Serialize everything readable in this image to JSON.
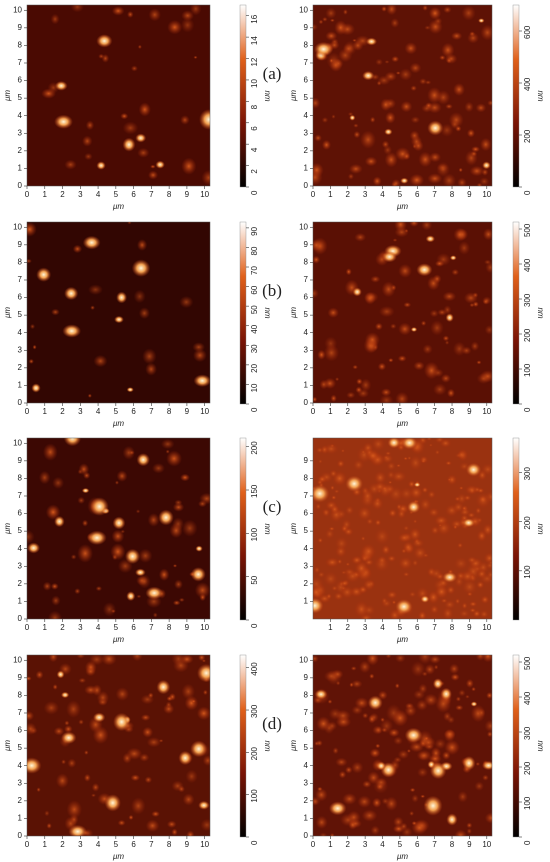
{
  "panels": [
    {
      "label": "(a)",
      "images": [
        {
          "xlabel": "μm",
          "ylabel": "μm",
          "xticks": [
            0,
            1,
            2,
            3,
            4,
            5,
            6,
            7,
            8,
            9,
            10
          ],
          "yticks": [
            0,
            1,
            2,
            3,
            4,
            5,
            6,
            7,
            8,
            9,
            10
          ],
          "xlim": [
            0,
            10.3
          ],
          "ylim": [
            0,
            10.3
          ],
          "colorbar": {
            "label": "nm",
            "ticks": [
              0,
              2,
              4,
              6,
              8,
              10,
              12,
              14,
              16
            ],
            "zlim": [
              0,
              17
            ]
          }
        },
        {
          "xlabel": "μm",
          "ylabel": "μm",
          "xticks": [
            0,
            1,
            2,
            3,
            4,
            5,
            6,
            7,
            8,
            9,
            10
          ],
          "yticks": [
            0,
            1,
            2,
            3,
            4,
            5,
            6,
            7,
            8,
            9,
            10
          ],
          "xlim": [
            0,
            10.3
          ],
          "ylim": [
            0,
            10.3
          ],
          "colorbar": {
            "label": "nm",
            "ticks": [
              0,
              200,
              400,
              600
            ],
            "zlim": [
              0,
              700
            ]
          }
        }
      ]
    },
    {
      "label": "(b)",
      "images": [
        {
          "xlabel": "μm",
          "ylabel": "μm",
          "xticks": [
            0,
            1,
            2,
            3,
            4,
            5,
            6,
            7,
            8,
            9,
            10
          ],
          "yticks": [
            0,
            1,
            2,
            3,
            4,
            5,
            6,
            7,
            8,
            9,
            10
          ],
          "xlim": [
            0,
            10.3
          ],
          "ylim": [
            0,
            10.3
          ],
          "colorbar": {
            "label": "nm",
            "ticks": [
              0,
              10,
              20,
              30,
              40,
              50,
              60,
              70,
              80,
              90
            ],
            "zlim": [
              0,
              93
            ]
          }
        },
        {
          "xlabel": "μm",
          "ylabel": "μm",
          "xticks": [
            0,
            1,
            2,
            3,
            4,
            5,
            6,
            7,
            8,
            9,
            10
          ],
          "yticks": [
            0,
            1,
            2,
            3,
            4,
            5,
            6,
            7,
            8,
            9,
            10
          ],
          "xlim": [
            0,
            10.3
          ],
          "ylim": [
            0,
            10.3
          ],
          "colorbar": {
            "label": "nm",
            "ticks": [
              0,
              100,
              200,
              300,
              400,
              500
            ],
            "zlim": [
              0,
              520
            ]
          }
        }
      ]
    },
    {
      "label": "(c)",
      "images": [
        {
          "xlabel": "μm",
          "ylabel": "μm",
          "xticks": [
            0,
            1,
            2,
            3,
            4,
            5,
            6,
            7,
            8,
            9,
            10
          ],
          "yticks": [
            0,
            1,
            2,
            3,
            4,
            5,
            6,
            7,
            8,
            9,
            10
          ],
          "xlim": [
            0,
            10.3
          ],
          "ylim": [
            0,
            10.3
          ],
          "colorbar": {
            "label": "nm",
            "ticks": [
              0,
              50,
              100,
              150,
              200
            ],
            "zlim": [
              0,
              210
            ]
          }
        },
        {
          "xlabel": "μm",
          "ylabel": "μm",
          "xticks": [
            1,
            2,
            3,
            4,
            5,
            6,
            7,
            8,
            9,
            10
          ],
          "yticks": [
            1,
            2,
            3,
            4,
            5,
            6,
            7,
            8,
            9
          ],
          "xlim": [
            0,
            10.3
          ],
          "ylim": [
            0,
            10.3
          ],
          "colorbar": {
            "label": "nm",
            "ticks": [
              100,
              200,
              300
            ],
            "zlim": [
              0,
              370
            ]
          }
        }
      ]
    },
    {
      "label": "(d)",
      "images": [
        {
          "xlabel": "μm",
          "ylabel": "μm",
          "xticks": [
            0,
            1,
            2,
            3,
            4,
            5,
            6,
            7,
            8,
            9,
            10
          ],
          "yticks": [
            0,
            1,
            2,
            3,
            4,
            5,
            6,
            7,
            8,
            9,
            10
          ],
          "xlim": [
            0,
            10.3
          ],
          "ylim": [
            0,
            10.3
          ],
          "colorbar": {
            "label": "nm",
            "ticks": [
              0,
              100,
              200,
              300,
              400
            ],
            "zlim": [
              0,
              430
            ]
          }
        },
        {
          "xlabel": "μm",
          "ylabel": "μm",
          "xticks": [
            0,
            1,
            2,
            3,
            4,
            5,
            6,
            7,
            8,
            9,
            10
          ],
          "yticks": [
            0,
            1,
            2,
            3,
            4,
            5,
            6,
            7,
            8,
            9,
            10
          ],
          "xlim": [
            0,
            10.3
          ],
          "ylim": [
            0,
            10.3
          ],
          "colorbar": {
            "label": "nm",
            "ticks": [
              0,
              100,
              200,
              300,
              400,
              500
            ],
            "zlim": [
              0,
              520
            ]
          }
        }
      ]
    }
  ]
}
